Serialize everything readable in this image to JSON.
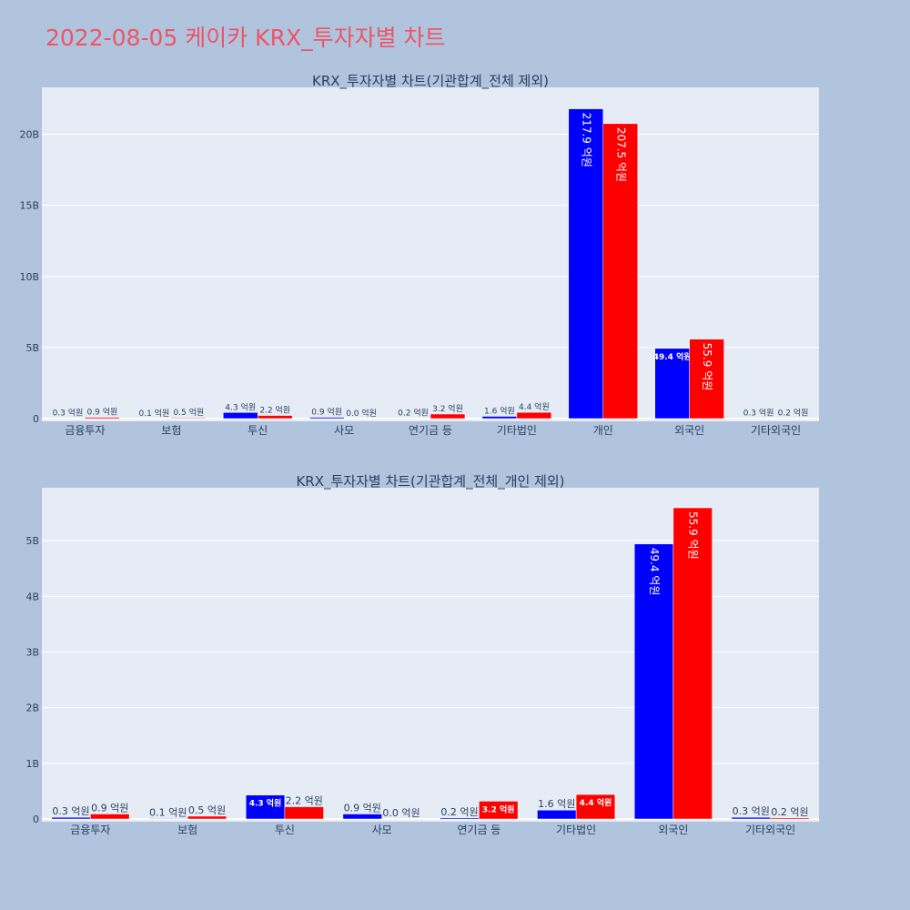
{
  "page_title": "2022-08-05 케이카 KRX_투자자별 차트",
  "colors": {
    "buy": "#0000ff",
    "sell": "#ff0000",
    "plot_bg": "#e5ecf6",
    "paper_bg": "#b0c4de",
    "title": "#ef5566",
    "text": "#2a3f5f"
  },
  "chart_data": [
    {
      "type": "bar",
      "title": "KRX_투자자별 차트(기관합계_전체 제외)",
      "categories": [
        "금융투자",
        "보험",
        "투신",
        "사모",
        "연기금 등",
        "기타법인",
        "개인",
        "외국인",
        "기타외국인"
      ],
      "ylim": [
        0,
        23300000000
      ],
      "yticks": [
        0,
        5000000000,
        10000000000,
        15000000000,
        20000000000
      ],
      "ytick_labels": [
        "0",
        "5B",
        "10B",
        "15B",
        "20B"
      ],
      "grid": true,
      "series": [
        {
          "color": "#0000ff",
          "values": [
            30000000,
            10000000,
            430000000,
            90000000,
            20000000,
            160000000,
            21790000000,
            4940000000,
            30000000
          ],
          "labels": [
            "0.3 억원",
            "0.1 억원",
            "4.3 억원",
            "0.9 억원",
            "0.2 억원",
            "1.6 억원",
            "217.9 억원",
            "49.4 억원",
            "0.3 억원"
          ]
        },
        {
          "color": "#ff0000",
          "values": [
            90000000,
            50000000,
            220000000,
            0,
            320000000,
            440000000,
            20750000000,
            5590000000,
            20000000
          ],
          "labels": [
            "0.9 억원",
            "0.5 억원",
            "2.2 억원",
            "0.0 억원",
            "3.2 억원",
            "4.4 억원",
            "207.5 억원",
            "55.9 억원",
            "0.2 억원"
          ]
        }
      ]
    },
    {
      "type": "bar",
      "title": "KRX_투자자별 차트(기관합계_전체_개인 제외)",
      "categories": [
        "금융투자",
        "보험",
        "투신",
        "사모",
        "연기금 등",
        "기타법인",
        "외국인",
        "기타외국인"
      ],
      "ylim": [
        0,
        5950000000
      ],
      "yticks": [
        0,
        1000000000,
        2000000000,
        3000000000,
        4000000000,
        5000000000
      ],
      "ytick_labels": [
        "0",
        "1B",
        "2B",
        "3B",
        "4B",
        "5B"
      ],
      "grid": true,
      "series": [
        {
          "color": "#0000ff",
          "values": [
            30000000,
            10000000,
            430000000,
            90000000,
            20000000,
            160000000,
            4940000000,
            30000000
          ],
          "labels": [
            "0.3 억원",
            "0.1 억원",
            "4.3 억원",
            "0.9 억원",
            "0.2 억원",
            "1.6 억원",
            "49.4 억원",
            "0.3 억원"
          ]
        },
        {
          "color": "#ff0000",
          "values": [
            90000000,
            50000000,
            220000000,
            0,
            320000000,
            440000000,
            5590000000,
            20000000
          ],
          "labels": [
            "0.9 억원",
            "0.5 억원",
            "2.2 억원",
            "0.0 억원",
            "3.2 억원",
            "4.4 억원",
            "55.9 억원",
            "0.2 억원"
          ]
        }
      ]
    }
  ]
}
